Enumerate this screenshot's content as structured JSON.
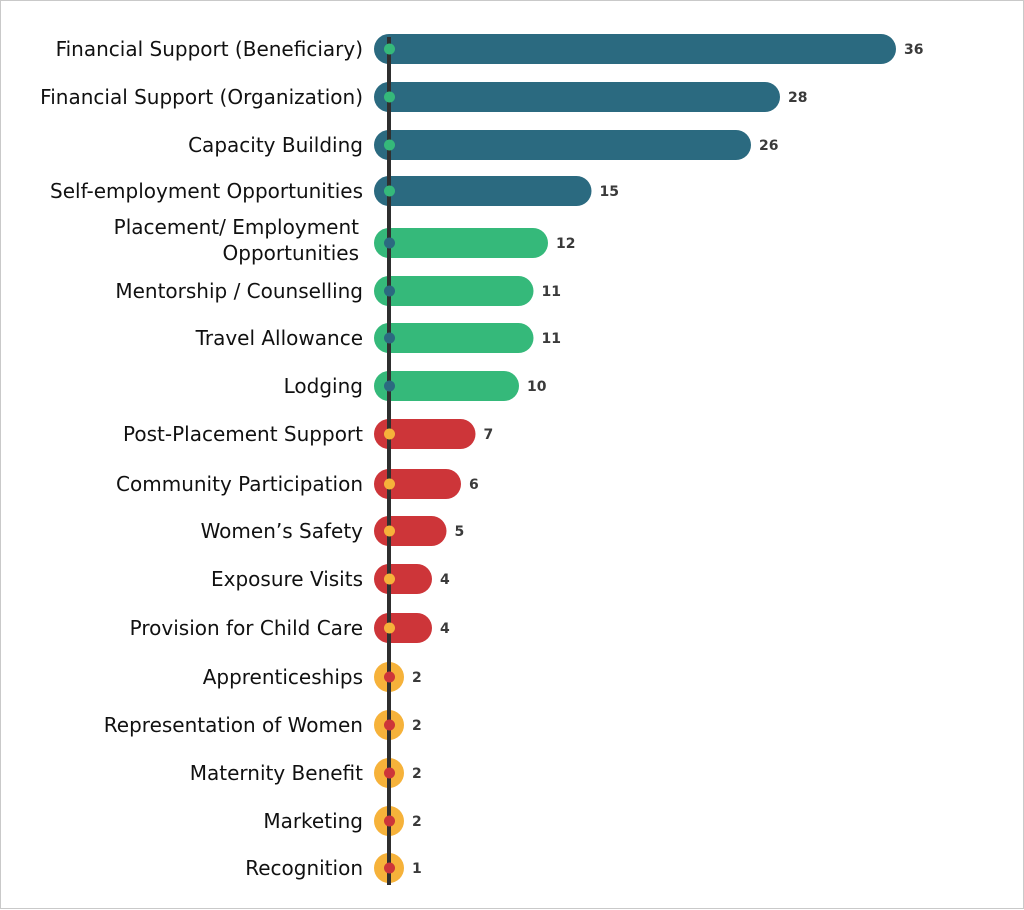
{
  "chart_data": {
    "type": "bar",
    "orientation": "horizontal",
    "title": "",
    "xlabel": "",
    "ylabel": "",
    "xlim": [
      0,
      36
    ],
    "grid": false,
    "legend": "none",
    "categories": [
      "Financial Support (Beneficiary)",
      "Financial Support (Organization)",
      "Capacity Building",
      "Self-employment Opportunities",
      "Placement/ Employment Opportunities",
      "Mentorship / Counselling",
      "Travel Allowance",
      "Lodging",
      "Post-Placement Support",
      "Community Participation",
      "Women’s Safety",
      "Exposure Visits",
      "Provision for Child Care",
      "Apprenticeships",
      "Representation of Women",
      "Maternity Benefit",
      "Marketing",
      "Recognition"
    ],
    "label_lines": [
      [
        "Financial Support (Beneficiary)"
      ],
      [
        "Financial Support (Organization)"
      ],
      [
        "Capacity Building"
      ],
      [
        "Self-employment Opportunities"
      ],
      [
        "Placement/ Employment",
        "Opportunities"
      ],
      [
        "Mentorship / Counselling"
      ],
      [
        "Travel Allowance"
      ],
      [
        "Lodging"
      ],
      [
        "Post-Placement Support"
      ],
      [
        "Community Participation"
      ],
      [
        "Women’s Safety"
      ],
      [
        "Exposure Visits"
      ],
      [
        "Provision for Child Care"
      ],
      [
        "Apprenticeships"
      ],
      [
        "Representation of Women"
      ],
      [
        "Maternity Benefit"
      ],
      [
        "Marketing"
      ],
      [
        "Recognition"
      ]
    ],
    "values": [
      36,
      28,
      26,
      15,
      12,
      11,
      11,
      10,
      7,
      6,
      5,
      4,
      4,
      2,
      2,
      2,
      2,
      1
    ],
    "groups": [
      0,
      0,
      0,
      0,
      1,
      1,
      1,
      1,
      2,
      2,
      2,
      2,
      2,
      3,
      3,
      3,
      3,
      3
    ],
    "group_colors": [
      "#2b6a80",
      "#35b97a",
      "#cd3539",
      "#f6b23a"
    ],
    "dot_colors": [
      "#35b97a",
      "#2b6a80",
      "#f6b23a",
      "#cd3539"
    ],
    "axis_line_color": "#2f2f2f"
  }
}
